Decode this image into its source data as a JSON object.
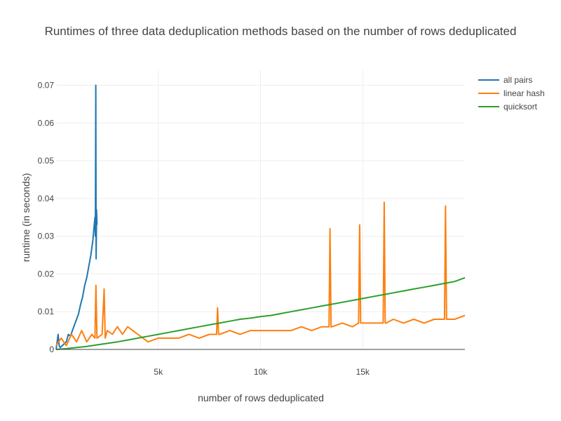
{
  "chart_data": {
    "type": "line",
    "title": "Runtimes of three data deduplication methods based on the number of rows deduplicated",
    "xlabel": "number of rows deduplicated",
    "ylabel": "runtime (in seconds)",
    "xlim": [
      0,
      20000
    ],
    "ylim": [
      0,
      0.074
    ],
    "x_ticks": [
      5000,
      10000,
      15000
    ],
    "x_tick_labels": [
      "5k",
      "10k",
      "15k"
    ],
    "y_ticks": [
      0,
      0.01,
      0.02,
      0.03,
      0.04,
      0.05,
      0.06,
      0.07
    ],
    "y_tick_labels": [
      "0",
      "0.01",
      "0.02",
      "0.03",
      "0.04",
      "0.05",
      "0.06",
      "0.07"
    ],
    "grid": true,
    "legend_position": "top-right",
    "series": [
      {
        "name": "all pairs",
        "color": "#1f77b4",
        "x": [
          0,
          100,
          150,
          200,
          300,
          400,
          500,
          600,
          700,
          800,
          900,
          1000,
          1100,
          1200,
          1300,
          1400,
          1500,
          1600,
          1700,
          1750,
          1800,
          1850,
          1900,
          1920,
          1940,
          1960,
          1980,
          2000
        ],
        "y": [
          0,
          0.004,
          0.001,
          0.0005,
          0.001,
          0.0015,
          0.002,
          0.004,
          0.0035,
          0.005,
          0.0065,
          0.008,
          0.0095,
          0.012,
          0.014,
          0.017,
          0.019,
          0.022,
          0.025,
          0.027,
          0.029,
          0.032,
          0.035,
          0.03,
          0.07,
          0.024,
          0.037,
          0.033
        ]
      },
      {
        "name": "linear hash",
        "color": "#ff7f0e",
        "x": [
          0,
          250,
          500,
          750,
          1000,
          1250,
          1500,
          1750,
          1900,
          1950,
          2000,
          2250,
          2350,
          2400,
          2500,
          2750,
          3000,
          3250,
          3500,
          3750,
          4000,
          4250,
          4500,
          5000,
          5500,
          6000,
          6500,
          7000,
          7500,
          7850,
          7900,
          7950,
          8000,
          8500,
          9000,
          9500,
          10000,
          10500,
          11000,
          11500,
          12000,
          12500,
          13000,
          13350,
          13400,
          13450,
          13500,
          14000,
          14500,
          14800,
          14850,
          14900,
          15000,
          15500,
          16000,
          16050,
          16100,
          16150,
          16500,
          17000,
          17500,
          18000,
          18500,
          19000,
          19050,
          19100,
          19150,
          19500,
          20000
        ],
        "y": [
          0.001,
          0.003,
          0.001,
          0.004,
          0.002,
          0.005,
          0.002,
          0.004,
          0.003,
          0.017,
          0.003,
          0.004,
          0.016,
          0.003,
          0.005,
          0.004,
          0.006,
          0.004,
          0.006,
          0.005,
          0.004,
          0.003,
          0.002,
          0.003,
          0.003,
          0.003,
          0.004,
          0.003,
          0.004,
          0.004,
          0.011,
          0.004,
          0.004,
          0.005,
          0.004,
          0.005,
          0.005,
          0.005,
          0.005,
          0.005,
          0.006,
          0.005,
          0.006,
          0.006,
          0.032,
          0.006,
          0.006,
          0.007,
          0.006,
          0.007,
          0.033,
          0.007,
          0.007,
          0.007,
          0.007,
          0.039,
          0.007,
          0.007,
          0.008,
          0.007,
          0.008,
          0.007,
          0.008,
          0.008,
          0.038,
          0.008,
          0.008,
          0.008,
          0.009
        ]
      },
      {
        "name": "quicksort",
        "color": "#2ca02c",
        "x": [
          0,
          500,
          1000,
          1500,
          2000,
          2500,
          3000,
          3500,
          4000,
          4500,
          5000,
          5500,
          6000,
          6500,
          7000,
          7500,
          8000,
          8500,
          9000,
          9500,
          10000,
          10500,
          11000,
          11500,
          12000,
          12500,
          13000,
          13500,
          14000,
          14500,
          15000,
          15500,
          16000,
          16500,
          17000,
          17500,
          18000,
          18500,
          19000,
          19500,
          20000
        ],
        "y": [
          0,
          0.0002,
          0.0005,
          0.0008,
          0.0012,
          0.0016,
          0.002,
          0.0025,
          0.003,
          0.0035,
          0.004,
          0.0045,
          0.005,
          0.0055,
          0.006,
          0.0065,
          0.007,
          0.0075,
          0.008,
          0.0083,
          0.0087,
          0.009,
          0.0095,
          0.01,
          0.0105,
          0.011,
          0.0115,
          0.012,
          0.0125,
          0.013,
          0.0135,
          0.014,
          0.0145,
          0.015,
          0.0155,
          0.016,
          0.0165,
          0.017,
          0.0175,
          0.018,
          0.019
        ]
      }
    ]
  }
}
